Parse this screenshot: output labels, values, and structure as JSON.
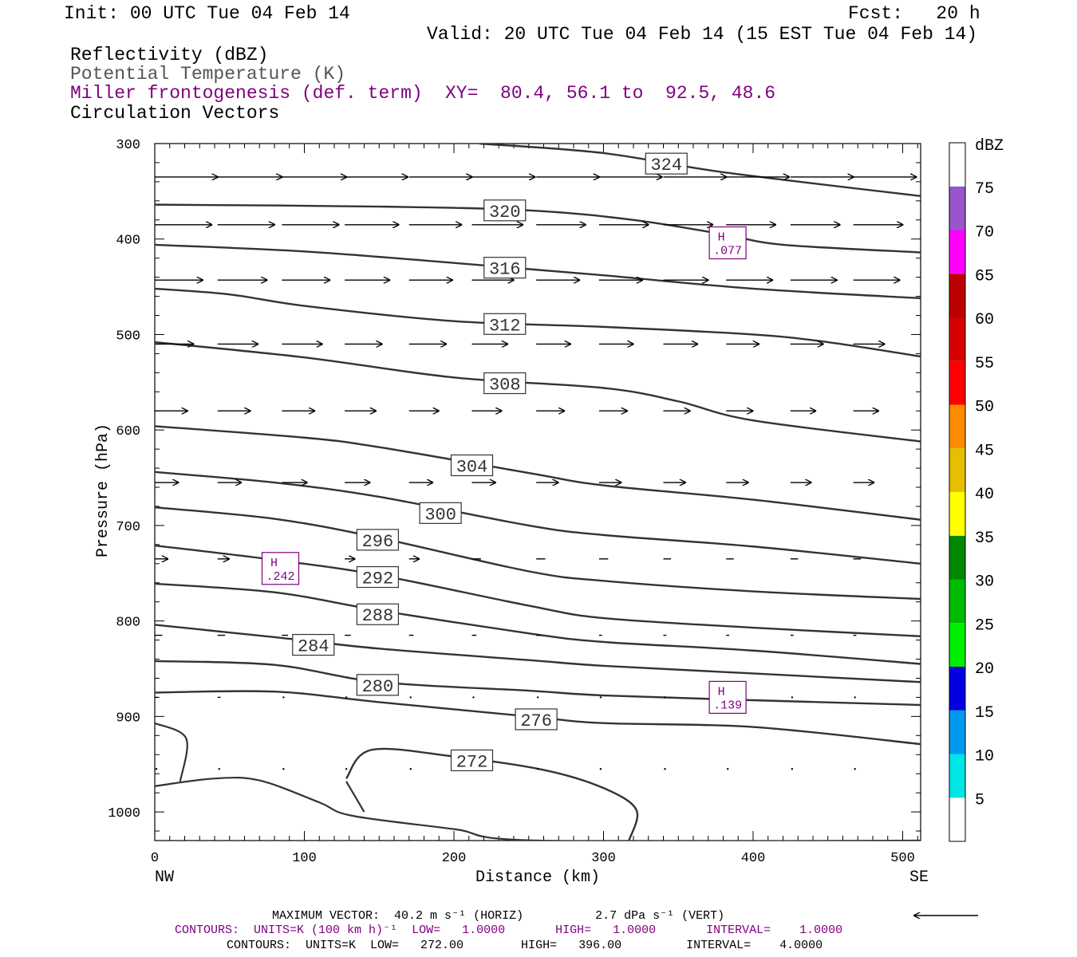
{
  "header": {
    "init": "Init: 00 UTC Tue 04 Feb 14",
    "fcst": "Fcst:   20 h",
    "valid": "Valid: 20 UTC Tue 04 Feb 14 (15 EST Tue 04 Feb 14)",
    "field1": "Reflectivity (dBZ)",
    "field2": "Potential Temperature (K)",
    "field3": "Miller frontogenesis (def. term)",
    "xy": "XY=  80.4, 56.1 to  92.5, 48.6",
    "field4": "Circulation Vectors"
  },
  "footer": {
    "max_vector": "MAXIMUM VECTOR:  40.2 m s⁻¹ (HORIZ)          2.7 dPa s⁻¹ (VERT)",
    "contours_fronto": "CONTOURS:  UNITS=K (100 km h)⁻¹  LOW=   1.0000       HIGH=   1.0000       INTERVAL=    1.0000",
    "contours_theta": "CONTOURS:  UNITS=K  LOW=   272.00        HIGH=   396.00         INTERVAL=    4.0000"
  },
  "colors": {
    "contour": "#333333",
    "fronto": "#800080",
    "colorbar": [
      "#00e5e5",
      "#0099ee",
      "#0000e0",
      "#00ee00",
      "#00bb00",
      "#008800",
      "#ffff00",
      "#e5bf00",
      "#ff8c00",
      "#ff0000",
      "#d60000",
      "#bb0000",
      "#ff00ff",
      "#9955c9"
    ]
  },
  "chart_data": {
    "type": "cross-section",
    "xlabel": "Distance (km)",
    "ylabel": "Pressure (hPa)",
    "xlim": [
      0,
      512
    ],
    "ylim": [
      1030,
      300
    ],
    "left_endpoint": "NW",
    "right_endpoint": "SE",
    "x_ticks": [
      "0",
      "100",
      "200",
      "300",
      "400",
      "500"
    ],
    "y_ticks": [
      "300",
      "400",
      "500",
      "600",
      "700",
      "800",
      "900",
      "1000"
    ],
    "colorbar": {
      "unit": "dBZ",
      "labels": [
        "5",
        "10",
        "15",
        "20",
        "25",
        "30",
        "35",
        "40",
        "45",
        "50",
        "55",
        "60",
        "65",
        "70",
        "75"
      ]
    },
    "theta_contours": [
      {
        "label": "324",
        "label_at": [
          342,
          321
        ],
        "points": [
          [
            217,
            300
          ],
          [
            300,
            310
          ],
          [
            380,
            330
          ],
          [
            512,
            355
          ]
        ]
      },
      {
        "label": "320",
        "label_at": [
          234,
          370
        ],
        "points": [
          [
            0,
            364
          ],
          [
            150,
            366
          ],
          [
            250,
            370
          ],
          [
            320,
            380
          ],
          [
            380,
            395
          ],
          [
            420,
            406
          ],
          [
            512,
            414
          ]
        ]
      },
      {
        "label": "316",
        "label_at": [
          234,
          430
        ],
        "points": [
          [
            0,
            406
          ],
          [
            100,
            413
          ],
          [
            200,
            425
          ],
          [
            300,
            438
          ],
          [
            400,
            452
          ],
          [
            512,
            462
          ]
        ]
      },
      {
        "label": "312",
        "label_at": [
          234,
          489
        ],
        "points": [
          [
            0,
            452
          ],
          [
            50,
            458
          ],
          [
            100,
            470
          ],
          [
            200,
            486
          ],
          [
            300,
            492
          ],
          [
            400,
            500
          ],
          [
            450,
            508
          ],
          [
            512,
            523
          ]
        ]
      },
      {
        "label": "308",
        "label_at": [
          234,
          551
        ],
        "points": [
          [
            0,
            508
          ],
          [
            100,
            524
          ],
          [
            200,
            545
          ],
          [
            300,
            556
          ],
          [
            350,
            570
          ],
          [
            400,
            590
          ],
          [
            512,
            612
          ]
        ]
      },
      {
        "label": "304",
        "label_at": [
          212,
          637
        ],
        "points": [
          [
            0,
            596
          ],
          [
            100,
            608
          ],
          [
            150,
            618
          ],
          [
            250,
            645
          ],
          [
            300,
            658
          ],
          [
            400,
            673
          ],
          [
            512,
            694
          ]
        ]
      },
      {
        "label": "300",
        "label_at": [
          191,
          687
        ],
        "points": [
          [
            0,
            644
          ],
          [
            80,
            655
          ],
          [
            150,
            670
          ],
          [
            250,
            700
          ],
          [
            300,
            710
          ],
          [
            400,
            722
          ],
          [
            512,
            740
          ]
        ]
      },
      {
        "label": "296",
        "label_at": [
          149,
          715
        ],
        "points": [
          [
            0,
            681
          ],
          [
            80,
            693
          ],
          [
            150,
            713
          ],
          [
            250,
            748
          ],
          [
            300,
            758
          ],
          [
            400,
            769
          ],
          [
            512,
            777
          ]
        ]
      },
      {
        "label": "292",
        "label_at": [
          149,
          754
        ],
        "points": [
          [
            0,
            721
          ],
          [
            80,
            736
          ],
          [
            150,
            752
          ],
          [
            250,
            784
          ],
          [
            300,
            797
          ],
          [
            400,
            807
          ],
          [
            512,
            816
          ]
        ]
      },
      {
        "label": "288",
        "label_at": [
          149,
          793
        ],
        "points": [
          [
            0,
            761
          ],
          [
            80,
            770
          ],
          [
            150,
            789
          ],
          [
            250,
            813
          ],
          [
            300,
            822
          ],
          [
            400,
            831
          ],
          [
            512,
            845
          ]
        ]
      },
      {
        "label": "284",
        "label_at": [
          106,
          825
        ],
        "points": [
          [
            0,
            804
          ],
          [
            80,
            817
          ],
          [
            150,
            829
          ],
          [
            250,
            841
          ],
          [
            300,
            847
          ],
          [
            400,
            855
          ],
          [
            512,
            864
          ]
        ]
      },
      {
        "label": "280",
        "label_at": [
          149,
          867
        ],
        "points": [
          [
            0,
            842
          ],
          [
            80,
            846
          ],
          [
            150,
            864
          ],
          [
            250,
            873
          ],
          [
            300,
            878
          ],
          [
            400,
            883
          ],
          [
            512,
            888
          ]
        ]
      },
      {
        "label": "276",
        "label_at": [
          255,
          903
        ],
        "points": [
          [
            0,
            875
          ],
          [
            80,
            874
          ],
          [
            150,
            885
          ],
          [
            250,
            900
          ],
          [
            300,
            907
          ],
          [
            400,
            911
          ],
          [
            512,
            929
          ]
        ]
      },
      {
        "label": "272",
        "label_at": [
          212,
          946
        ],
        "points": [
          [
            128,
            965
          ],
          [
            145,
            935
          ],
          [
            200,
            942
          ],
          [
            260,
            956
          ],
          [
            300,
            975
          ],
          [
            322,
            998
          ],
          [
            317,
            1030
          ]
        ]
      }
    ],
    "other_contours": [
      [
        [
          0,
          907
        ],
        [
          21,
          923
        ],
        [
          17,
          968
        ]
      ],
      [
        [
          0,
          973
        ],
        [
          40,
          965
        ],
        [
          70,
          967
        ],
        [
          110,
          990
        ],
        [
          132,
          1004
        ],
        [
          200,
          1018
        ],
        [
          257,
          1030
        ],
        [
          512,
          1030
        ]
      ],
      [
        [
          128,
          968
        ],
        [
          140,
          1000
        ]
      ]
    ],
    "fronto_maxima": [
      {
        "kind": "H",
        "value": ".242",
        "x": 84,
        "y": 745
      },
      {
        "kind": "H",
        "value": ".077",
        "x": 383,
        "y": 404
      },
      {
        "kind": "H",
        "value": ".139",
        "x": 383,
        "y": 880
      }
    ],
    "vector_levels": [
      {
        "p": 335,
        "lengths": [
          42,
          43,
          43,
          42,
          42,
          42,
          42,
          42,
          42,
          42,
          42,
          42
        ]
      },
      {
        "p": 385,
        "lengths": [
          38,
          38,
          38,
          36,
          35,
          34,
          33,
          33,
          33,
          33,
          33,
          33
        ]
      },
      {
        "p": 443,
        "lengths": [
          32,
          33,
          32,
          30,
          29,
          28,
          29,
          29,
          30,
          31,
          31,
          31
        ]
      },
      {
        "p": 510,
        "lengths": [
          26,
          27,
          27,
          25,
          25,
          24,
          23,
          23,
          23,
          22,
          22,
          21
        ]
      },
      {
        "p": 580,
        "lengths": [
          22,
          22,
          22,
          21,
          20,
          20,
          19,
          19,
          18,
          18,
          17,
          17
        ]
      },
      {
        "p": 655,
        "lengths": [
          16,
          16,
          17,
          17,
          16,
          16,
          15,
          15,
          15,
          15,
          14,
          14
        ]
      },
      {
        "p": 735,
        "lengths": [
          9,
          8,
          8,
          7,
          7,
          6,
          6,
          6,
          5,
          5,
          5,
          5
        ]
      },
      {
        "p": 815,
        "lengths": [
          5,
          5,
          4,
          4,
          3,
          3,
          3,
          2,
          2,
          2,
          2,
          2
        ]
      },
      {
        "p": 880,
        "lengths": [
          2,
          2,
          1,
          1,
          1,
          1,
          1,
          1,
          1,
          1,
          1,
          1
        ]
      },
      {
        "p": 955,
        "lengths": [
          1,
          1,
          1,
          1,
          1,
          1,
          1,
          1,
          1,
          1,
          1,
          1
        ]
      }
    ],
    "vector_x": [
      0,
      42,
      85,
      127,
      170,
      212,
      255,
      297,
      340,
      382,
      425,
      467
    ]
  }
}
